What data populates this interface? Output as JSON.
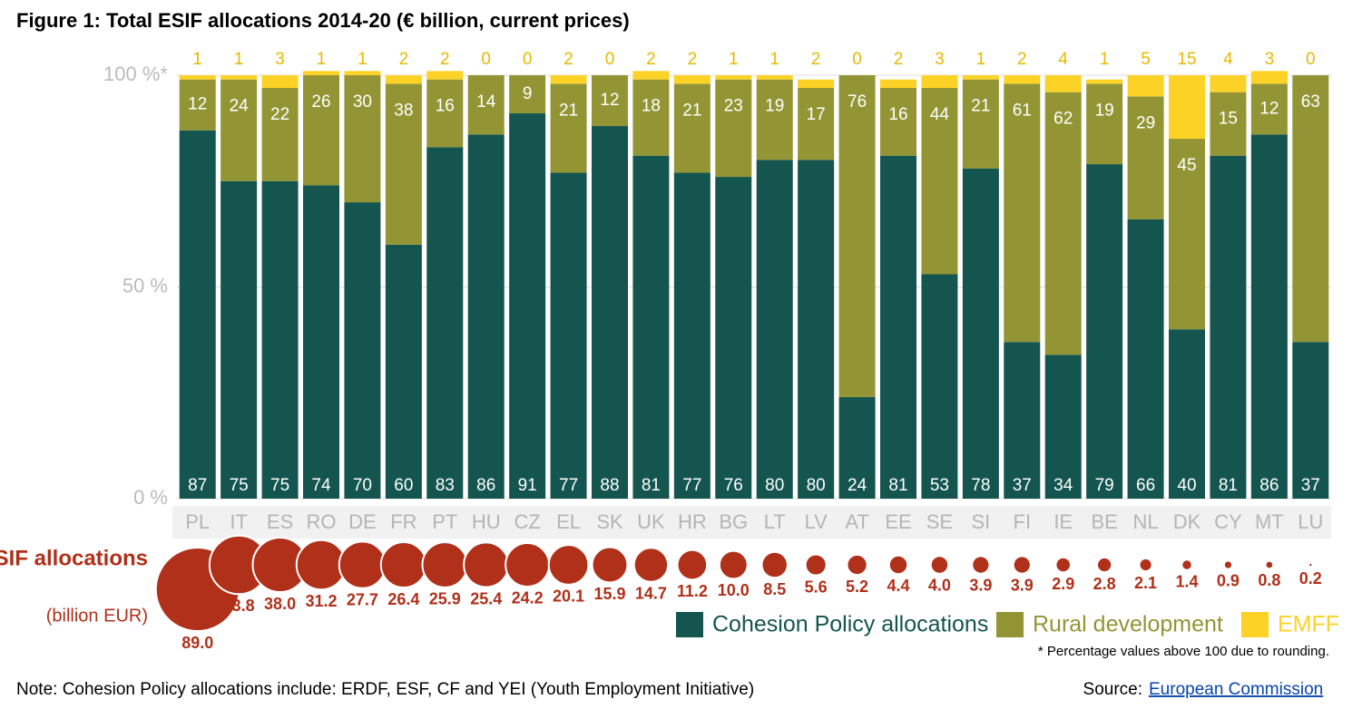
{
  "chart_data": {
    "type": "bar",
    "stacked": true,
    "title": "Figure 1: Total ESIF allocations 2014-20 (€ billion, current prices)",
    "categories": [
      "PL",
      "IT",
      "ES",
      "RO",
      "DE",
      "FR",
      "PT",
      "HU",
      "CZ",
      "EL",
      "SK",
      "UK",
      "HR",
      "BG",
      "LT",
      "LV",
      "AT",
      "EE",
      "SE",
      "SI",
      "FI",
      "IE",
      "BE",
      "NL",
      "DK",
      "CY",
      "MT",
      "LU"
    ],
    "series": [
      {
        "name": "Cohesion Policy allocations",
        "color": "#14554f",
        "values": [
          87,
          75,
          75,
          74,
          70,
          60,
          83,
          86,
          91,
          77,
          88,
          81,
          77,
          76,
          80,
          80,
          24,
          81,
          53,
          78,
          37,
          34,
          79,
          66,
          40,
          81,
          86,
          37
        ]
      },
      {
        "name": "Rural development",
        "color": "#939535",
        "values": [
          12,
          24,
          22,
          26,
          30,
          38,
          16,
          14,
          9,
          21,
          12,
          18,
          21,
          23,
          19,
          17,
          76,
          16,
          44,
          21,
          61,
          62,
          19,
          29,
          45,
          15,
          12,
          63
        ]
      },
      {
        "name": "EMFF",
        "color": "#fdd226",
        "values": [
          1,
          1,
          3,
          1,
          1,
          2,
          2,
          0,
          0,
          2,
          0,
          2,
          2,
          1,
          1,
          2,
          0,
          2,
          3,
          1,
          2,
          4,
          1,
          5,
          15,
          4,
          3,
          0
        ]
      }
    ],
    "ylim": [
      0,
      100
    ],
    "yticks": [
      {
        "value": 0,
        "label": "0 %"
      },
      {
        "value": 50,
        "label": "50 %"
      },
      {
        "value": 100,
        "label": "100 %*"
      }
    ],
    "grid": true,
    "bubbles": {
      "title": "Total ESIF allocations",
      "subtitle": "(billion EUR)",
      "color": "#b0301a",
      "values": [
        89.0,
        43.8,
        38.0,
        31.2,
        27.7,
        26.4,
        25.9,
        25.4,
        24.2,
        20.1,
        15.9,
        14.7,
        11.2,
        10.0,
        8.5,
        5.6,
        5.2,
        4.4,
        4.0,
        3.9,
        3.9,
        2.9,
        2.8,
        2.1,
        1.4,
        0.9,
        0.8,
        0.2
      ],
      "value_labels": [
        "89.0",
        "43.8",
        "38.0",
        "31.2",
        "27.7",
        "26.4",
        "25.9",
        "25.4",
        "24.2",
        "20.1",
        "15.9",
        "14.7",
        "11.2",
        "10.0",
        "8.5",
        "5.6",
        "5.2",
        "4.4",
        "4.0",
        "3.9",
        "3.9",
        "2.9",
        "2.8",
        "2.1",
        "1.4",
        "0.9",
        "0.8",
        "0.2"
      ]
    },
    "footnote": "* Percentage values above 100 due to rounding.",
    "note": "Note: Cohesion Policy allocations include: ERDF, ESF, CF and YEI (Youth Employment Initiative)",
    "source_label": "Source:",
    "source_link": "European Commission"
  }
}
